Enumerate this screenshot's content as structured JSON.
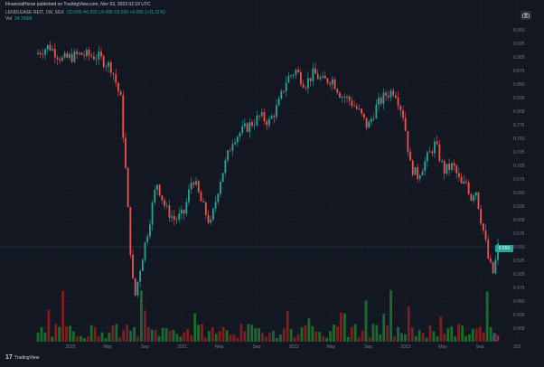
{
  "header": {
    "publish_text": "FinancialHorse published on TradingView.com, Nov 03, 2023 02:19 UTC",
    "symbol": "LENDLEASE REIT, 1W, SGX",
    "ohlc": "O0.500 H0.555 L0.495 C0.550 +0.055 (+11.11%)",
    "vol_label": "Vol",
    "vol_value": "34.706M"
  },
  "branding": {
    "logo_text": "TradingView",
    "logo_mark": "17"
  },
  "colors": {
    "up": "#26a69a",
    "down": "#ef5350",
    "background": "#131722",
    "grid": "#1e222d",
    "axis_text": "#787b86"
  },
  "icons": {
    "camera": "camera-icon",
    "marker": "circle-marker-icon"
  },
  "chart_data": {
    "type": "candlestick",
    "x_ticks": [
      "2020",
      "May",
      "Sep",
      "2021",
      "May",
      "Sep",
      "2022",
      "May",
      "Sep",
      "2023",
      "May",
      "Sep",
      "202"
    ],
    "y_ticks": [
      "0.950",
      "0.925",
      "0.900",
      "0.875",
      "0.850",
      "0.825",
      "0.800",
      "0.775",
      "0.750",
      "0.725",
      "0.700",
      "0.675",
      "0.650",
      "0.625",
      "0.600",
      "0.575",
      "0.550",
      "0.525",
      "0.500",
      "0.475",
      "0.450",
      "0.425",
      "0.400"
    ],
    "ylim": [
      0.385,
      0.955
    ],
    "last_price": "0.550",
    "price_path": [
      [
        0.0,
        0.905
      ],
      [
        0.03,
        0.92
      ],
      [
        0.06,
        0.895
      ],
      [
        0.1,
        0.905
      ],
      [
        0.14,
        0.9
      ],
      [
        0.17,
        0.88
      ],
      [
        0.19,
        0.82
      ],
      [
        0.2,
        0.7
      ],
      [
        0.21,
        0.56
      ],
      [
        0.22,
        0.45
      ],
      [
        0.235,
        0.52
      ],
      [
        0.25,
        0.58
      ],
      [
        0.27,
        0.67
      ],
      [
        0.29,
        0.62
      ],
      [
        0.31,
        0.6
      ],
      [
        0.33,
        0.61
      ],
      [
        0.35,
        0.68
      ],
      [
        0.37,
        0.63
      ],
      [
        0.39,
        0.59
      ],
      [
        0.41,
        0.67
      ],
      [
        0.44,
        0.75
      ],
      [
        0.47,
        0.77
      ],
      [
        0.5,
        0.79
      ],
      [
        0.52,
        0.78
      ],
      [
        0.54,
        0.81
      ],
      [
        0.56,
        0.86
      ],
      [
        0.58,
        0.875
      ],
      [
        0.6,
        0.85
      ],
      [
        0.62,
        0.87
      ],
      [
        0.64,
        0.855
      ],
      [
        0.66,
        0.86
      ],
      [
        0.68,
        0.83
      ],
      [
        0.7,
        0.82
      ],
      [
        0.72,
        0.8
      ],
      [
        0.74,
        0.77
      ],
      [
        0.76,
        0.81
      ],
      [
        0.78,
        0.83
      ],
      [
        0.8,
        0.84
      ],
      [
        0.82,
        0.79
      ],
      [
        0.835,
        0.7
      ],
      [
        0.85,
        0.68
      ],
      [
        0.87,
        0.71
      ],
      [
        0.89,
        0.74
      ],
      [
        0.91,
        0.69
      ],
      [
        0.93,
        0.7
      ],
      [
        0.95,
        0.66
      ],
      [
        0.96,
        0.67
      ],
      [
        0.97,
        0.64
      ],
      [
        0.98,
        0.66
      ],
      [
        0.99,
        0.61
      ],
      [
        1.0,
        0.57
      ],
      [
        1.01,
        0.52
      ],
      [
        1.02,
        0.5
      ],
      [
        1.03,
        0.55
      ]
    ],
    "volume_bars": 130
  }
}
